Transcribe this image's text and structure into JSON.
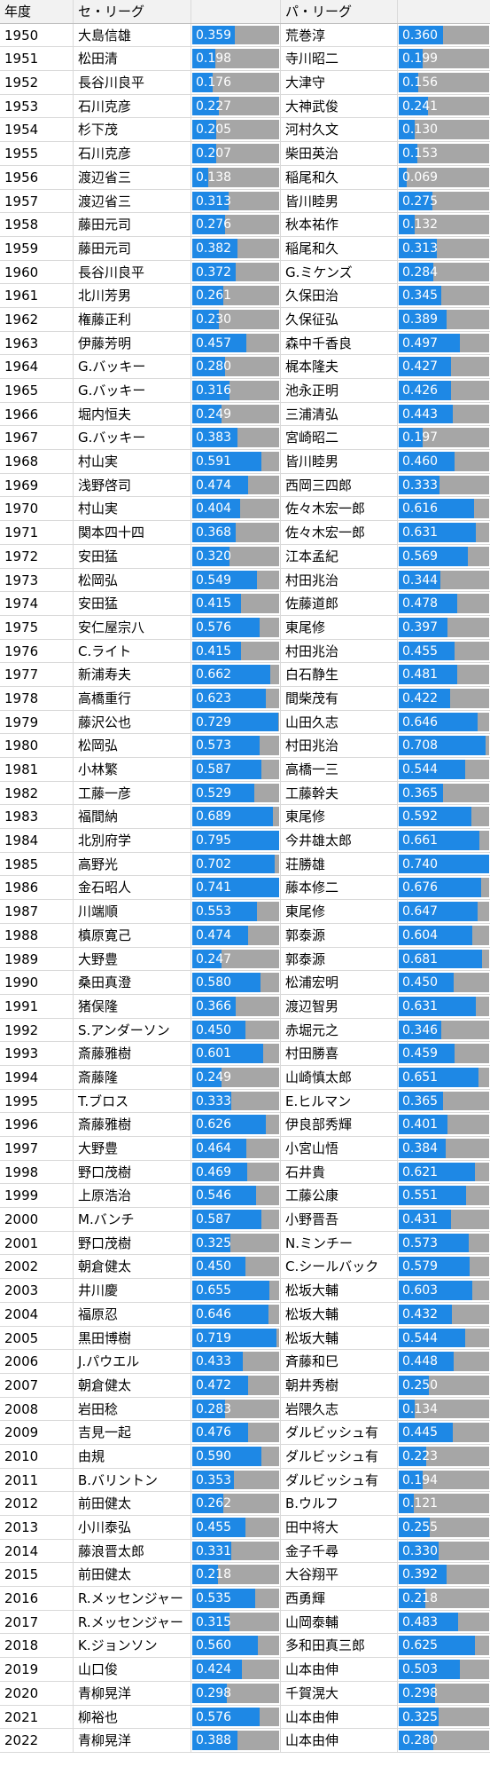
{
  "header": {
    "year": "年度",
    "central": "セ・リーグ",
    "pacific": "パ・リーグ"
  },
  "colors": {
    "bar": "#1e88e5",
    "track": "#a6a6a6"
  },
  "rows": [
    {
      "year": "1950",
      "central_name": "大島信雄",
      "central_val": "0.359",
      "pacific_name": "荒巻淳",
      "pacific_val": "0.360"
    },
    {
      "year": "1951",
      "central_name": "松田清",
      "central_val": "0.198",
      "pacific_name": "寺川昭二",
      "pacific_val": "0.199"
    },
    {
      "year": "1952",
      "central_name": "長谷川良平",
      "central_val": "0.176",
      "pacific_name": "大津守",
      "pacific_val": "0.156"
    },
    {
      "year": "1953",
      "central_name": "石川克彦",
      "central_val": "0.227",
      "pacific_name": "大神武俊",
      "pacific_val": "0.241"
    },
    {
      "year": "1954",
      "central_name": "杉下茂",
      "central_val": "0.205",
      "pacific_name": "河村久文",
      "pacific_val": "0.130"
    },
    {
      "year": "1955",
      "central_name": "石川克彦",
      "central_val": "0.207",
      "pacific_name": "柴田英治",
      "pacific_val": "0.153"
    },
    {
      "year": "1956",
      "central_name": "渡辺省三",
      "central_val": "0.138",
      "pacific_name": "稲尾和久",
      "pacific_val": "0.069"
    },
    {
      "year": "1957",
      "central_name": "渡辺省三",
      "central_val": "0.313",
      "pacific_name": "皆川睦男",
      "pacific_val": "0.275"
    },
    {
      "year": "1958",
      "central_name": "藤田元司",
      "central_val": "0.276",
      "pacific_name": "秋本祐作",
      "pacific_val": "0.132"
    },
    {
      "year": "1959",
      "central_name": "藤田元司",
      "central_val": "0.382",
      "pacific_name": "稲尾和久",
      "pacific_val": "0.313"
    },
    {
      "year": "1960",
      "central_name": "長谷川良平",
      "central_val": "0.372",
      "pacific_name": "G.ミケンズ",
      "pacific_val": "0.284"
    },
    {
      "year": "1961",
      "central_name": "北川芳男",
      "central_val": "0.261",
      "pacific_name": "久保田治",
      "pacific_val": "0.345"
    },
    {
      "year": "1962",
      "central_name": "権藤正利",
      "central_val": "0.230",
      "pacific_name": "久保征弘",
      "pacific_val": "0.389"
    },
    {
      "year": "1963",
      "central_name": "伊藤芳明",
      "central_val": "0.457",
      "pacific_name": "森中千香良",
      "pacific_val": "0.497"
    },
    {
      "year": "1964",
      "central_name": "G.バッキー",
      "central_val": "0.280",
      "pacific_name": "梶本隆夫",
      "pacific_val": "0.427"
    },
    {
      "year": "1965",
      "central_name": "G.バッキー",
      "central_val": "0.316",
      "pacific_name": "池永正明",
      "pacific_val": "0.426"
    },
    {
      "year": "1966",
      "central_name": "堀内恒夫",
      "central_val": "0.249",
      "pacific_name": "三浦清弘",
      "pacific_val": "0.443"
    },
    {
      "year": "1967",
      "central_name": "G.バッキー",
      "central_val": "0.383",
      "pacific_name": "宮崎昭二",
      "pacific_val": "0.197"
    },
    {
      "year": "1968",
      "central_name": "村山実",
      "central_val": "0.591",
      "pacific_name": "皆川睦男",
      "pacific_val": "0.460"
    },
    {
      "year": "1969",
      "central_name": "浅野啓司",
      "central_val": "0.474",
      "pacific_name": "西岡三四郎",
      "pacific_val": "0.333"
    },
    {
      "year": "1970",
      "central_name": "村山実",
      "central_val": "0.404",
      "pacific_name": "佐々木宏一郎",
      "pacific_val": "0.616"
    },
    {
      "year": "1971",
      "central_name": "関本四十四",
      "central_val": "0.368",
      "pacific_name": "佐々木宏一郎",
      "pacific_val": "0.631"
    },
    {
      "year": "1972",
      "central_name": "安田猛",
      "central_val": "0.320",
      "pacific_name": "江本孟紀",
      "pacific_val": "0.569"
    },
    {
      "year": "1973",
      "central_name": "松岡弘",
      "central_val": "0.549",
      "pacific_name": "村田兆治",
      "pacific_val": "0.344"
    },
    {
      "year": "1974",
      "central_name": "安田猛",
      "central_val": "0.415",
      "pacific_name": "佐藤道郎",
      "pacific_val": "0.478"
    },
    {
      "year": "1975",
      "central_name": "安仁屋宗八",
      "central_val": "0.576",
      "pacific_name": "東尾修",
      "pacific_val": "0.397"
    },
    {
      "year": "1976",
      "central_name": "C.ライト",
      "central_val": "0.415",
      "pacific_name": "村田兆治",
      "pacific_val": "0.455"
    },
    {
      "year": "1977",
      "central_name": "新浦寿夫",
      "central_val": "0.662",
      "pacific_name": "白石静生",
      "pacific_val": "0.481"
    },
    {
      "year": "1978",
      "central_name": "高橋重行",
      "central_val": "0.623",
      "pacific_name": "間柴茂有",
      "pacific_val": "0.422"
    },
    {
      "year": "1979",
      "central_name": "藤沢公也",
      "central_val": "0.729",
      "pacific_name": "山田久志",
      "pacific_val": "0.646"
    },
    {
      "year": "1980",
      "central_name": "松岡弘",
      "central_val": "0.573",
      "pacific_name": "村田兆治",
      "pacific_val": "0.708"
    },
    {
      "year": "1981",
      "central_name": "小林繁",
      "central_val": "0.587",
      "pacific_name": "高橋一三",
      "pacific_val": "0.544"
    },
    {
      "year": "1982",
      "central_name": "工藤一彦",
      "central_val": "0.529",
      "pacific_name": "工藤幹夫",
      "pacific_val": "0.365"
    },
    {
      "year": "1983",
      "central_name": "福間納",
      "central_val": "0.689",
      "pacific_name": "東尾修",
      "pacific_val": "0.592"
    },
    {
      "year": "1984",
      "central_name": "北別府学",
      "central_val": "0.795",
      "pacific_name": "今井雄太郎",
      "pacific_val": "0.661"
    },
    {
      "year": "1985",
      "central_name": "高野光",
      "central_val": "0.702",
      "pacific_name": "荘勝雄",
      "pacific_val": "0.740"
    },
    {
      "year": "1986",
      "central_name": "金石昭人",
      "central_val": "0.741",
      "pacific_name": "藤本修二",
      "pacific_val": "0.676"
    },
    {
      "year": "1987",
      "central_name": "川端順",
      "central_val": "0.553",
      "pacific_name": "東尾修",
      "pacific_val": "0.647"
    },
    {
      "year": "1988",
      "central_name": "槙原寛己",
      "central_val": "0.474",
      "pacific_name": "郭泰源",
      "pacific_val": "0.604"
    },
    {
      "year": "1989",
      "central_name": "大野豊",
      "central_val": "0.247",
      "pacific_name": "郭泰源",
      "pacific_val": "0.681"
    },
    {
      "year": "1990",
      "central_name": "桑田真澄",
      "central_val": "0.580",
      "pacific_name": "松浦宏明",
      "pacific_val": "0.450"
    },
    {
      "year": "1991",
      "central_name": "猪俣隆",
      "central_val": "0.366",
      "pacific_name": "渡辺智男",
      "pacific_val": "0.631"
    },
    {
      "year": "1992",
      "central_name": "S.アンダーソン",
      "central_val": "0.450",
      "pacific_name": "赤堀元之",
      "pacific_val": "0.346"
    },
    {
      "year": "1993",
      "central_name": "斎藤雅樹",
      "central_val": "0.601",
      "pacific_name": "村田勝喜",
      "pacific_val": "0.459"
    },
    {
      "year": "1994",
      "central_name": "斎藤隆",
      "central_val": "0.249",
      "pacific_name": "山崎慎太郎",
      "pacific_val": "0.651"
    },
    {
      "year": "1995",
      "central_name": "T.ブロス",
      "central_val": "0.333",
      "pacific_name": "E.ヒルマン",
      "pacific_val": "0.365"
    },
    {
      "year": "1996",
      "central_name": "斎藤雅樹",
      "central_val": "0.626",
      "pacific_name": "伊良部秀輝",
      "pacific_val": "0.401"
    },
    {
      "year": "1997",
      "central_name": "大野豊",
      "central_val": "0.464",
      "pacific_name": "小宮山悟",
      "pacific_val": "0.384"
    },
    {
      "year": "1998",
      "central_name": "野口茂樹",
      "central_val": "0.469",
      "pacific_name": "石井貴",
      "pacific_val": "0.621"
    },
    {
      "year": "1999",
      "central_name": "上原浩治",
      "central_val": "0.546",
      "pacific_name": "工藤公康",
      "pacific_val": "0.551"
    },
    {
      "year": "2000",
      "central_name": "M.バンチ",
      "central_val": "0.587",
      "pacific_name": "小野晋吾",
      "pacific_val": "0.431"
    },
    {
      "year": "2001",
      "central_name": "野口茂樹",
      "central_val": "0.325",
      "pacific_name": "N.ミンチー",
      "pacific_val": "0.573"
    },
    {
      "year": "2002",
      "central_name": "朝倉健太",
      "central_val": "0.450",
      "pacific_name": "C.シールバック",
      "pacific_val": "0.579"
    },
    {
      "year": "2003",
      "central_name": "井川慶",
      "central_val": "0.655",
      "pacific_name": "松坂大輔",
      "pacific_val": "0.603"
    },
    {
      "year": "2004",
      "central_name": "福原忍",
      "central_val": "0.646",
      "pacific_name": "松坂大輔",
      "pacific_val": "0.432"
    },
    {
      "year": "2005",
      "central_name": "黒田博樹",
      "central_val": "0.719",
      "pacific_name": "松坂大輔",
      "pacific_val": "0.544"
    },
    {
      "year": "2006",
      "central_name": "J.パウエル",
      "central_val": "0.433",
      "pacific_name": "斉藤和巳",
      "pacific_val": "0.448"
    },
    {
      "year": "2007",
      "central_name": "朝倉健太",
      "central_val": "0.472",
      "pacific_name": "朝井秀樹",
      "pacific_val": "0.250"
    },
    {
      "year": "2008",
      "central_name": "岩田稔",
      "central_val": "0.283",
      "pacific_name": "岩隈久志",
      "pacific_val": "0.134"
    },
    {
      "year": "2009",
      "central_name": "吉見一起",
      "central_val": "0.476",
      "pacific_name": "ダルビッシュ有",
      "pacific_val": "0.445"
    },
    {
      "year": "2010",
      "central_name": "由規",
      "central_val": "0.590",
      "pacific_name": "ダルビッシュ有",
      "pacific_val": "0.223"
    },
    {
      "year": "2011",
      "central_name": "B.バリントン",
      "central_val": "0.353",
      "pacific_name": "ダルビッシュ有",
      "pacific_val": "0.194"
    },
    {
      "year": "2012",
      "central_name": "前田健太",
      "central_val": "0.262",
      "pacific_name": "B.ウルフ",
      "pacific_val": "0.121"
    },
    {
      "year": "2013",
      "central_name": "小川泰弘",
      "central_val": "0.455",
      "pacific_name": "田中将大",
      "pacific_val": "0.255"
    },
    {
      "year": "2014",
      "central_name": "藤浪晋太郎",
      "central_val": "0.331",
      "pacific_name": "金子千尋",
      "pacific_val": "0.330"
    },
    {
      "year": "2015",
      "central_name": "前田健太",
      "central_val": "0.218",
      "pacific_name": "大谷翔平",
      "pacific_val": "0.392"
    },
    {
      "year": "2016",
      "central_name": "R.メッセンジャー",
      "central_val": "0.535",
      "pacific_name": "西勇輝",
      "pacific_val": "0.218"
    },
    {
      "year": "2017",
      "central_name": "R.メッセンジャー",
      "central_val": "0.315",
      "pacific_name": "山岡泰輔",
      "pacific_val": "0.483"
    },
    {
      "year": "2018",
      "central_name": "K.ジョンソン",
      "central_val": "0.560",
      "pacific_name": "多和田真三郎",
      "pacific_val": "0.625"
    },
    {
      "year": "2019",
      "central_name": "山口俊",
      "central_val": "0.424",
      "pacific_name": "山本由伸",
      "pacific_val": "0.503"
    },
    {
      "year": "2020",
      "central_name": "青柳晃洋",
      "central_val": "0.298",
      "pacific_name": "千賀滉大",
      "pacific_val": "0.298"
    },
    {
      "year": "2021",
      "central_name": "柳裕也",
      "central_val": "0.576",
      "pacific_name": "山本由伸",
      "pacific_val": "0.325"
    },
    {
      "year": "2022",
      "central_name": "青柳晃洋",
      "central_val": "0.388",
      "pacific_name": "山本由伸",
      "pacific_val": "0.280"
    }
  ]
}
